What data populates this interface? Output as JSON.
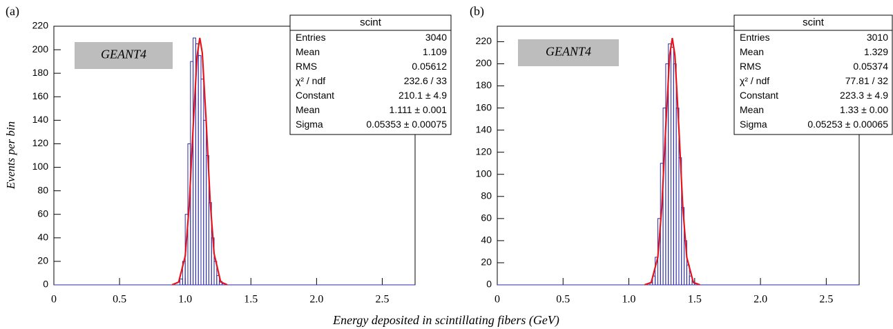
{
  "x_label": "Energy deposited in scintillating fibers (GeV)",
  "chart_data": [
    {
      "type": "histogram",
      "panel_label": "(a)",
      "annotation": "GEANT4",
      "y_label": "Events per bin",
      "color": "#2a2aa8",
      "fit_color": "#e8141b",
      "bins": [
        0.96,
        0.98,
        1.0,
        1.02,
        1.04,
        1.06,
        1.08,
        1.1,
        1.12,
        1.14,
        1.16,
        1.18,
        1.2,
        1.22,
        1.24,
        1.26,
        1.28,
        1.3
      ],
      "values": [
        5,
        20,
        60,
        120,
        190,
        210,
        205,
        195,
        175,
        140,
        110,
        70,
        40,
        20,
        8,
        3,
        1
      ],
      "fit": {
        "x": [
          0.9,
          0.95,
          1.0,
          1.03,
          1.06,
          1.09,
          1.111,
          1.13,
          1.16,
          1.19,
          1.22,
          1.27,
          1.32
        ],
        "values": [
          0.09,
          2.3,
          24.5,
          66.9,
          133.4,
          194.5,
          210.1,
          197.3,
          138.2,
          70.7,
          26.4,
          2.5,
          0.1
        ]
      },
      "xlim": [
        0,
        2.75
      ],
      "ylim": [
        0,
        220
      ],
      "xticks": [
        0,
        0.5,
        {
          "value": 1,
          "label": "1.0"
        },
        1.5,
        {
          "value": 2,
          "label": "2.0"
        },
        2.5
      ],
      "yticks": [
        0,
        20,
        40,
        60,
        80,
        100,
        120,
        140,
        160,
        180,
        200,
        220
      ],
      "stats": {
        "title": "scint",
        "rows": [
          [
            "Entries",
            "3040"
          ],
          [
            "Mean",
            "1.109"
          ],
          [
            "RMS",
            "0.05612"
          ],
          [
            "χ² / ndf",
            "232.6 / 33"
          ],
          [
            "Constant",
            "210.1 ± 4.9"
          ],
          [
            "Mean",
            "1.111 ± 0.001"
          ],
          [
            "Sigma",
            "0.05353 ± 0.00075"
          ]
        ]
      }
    },
    {
      "type": "histogram",
      "panel_label": "(b)",
      "annotation": "GEANT4",
      "color": "#2a2aa8",
      "fit_color": "#e8141b",
      "bins": [
        1.16,
        1.18,
        1.2,
        1.22,
        1.24,
        1.26,
        1.28,
        1.3,
        1.32,
        1.34,
        1.36,
        1.38,
        1.4,
        1.42,
        1.44,
        1.46,
        1.48,
        1.5,
        1.52
      ],
      "values": [
        2,
        8,
        25,
        60,
        110,
        160,
        200,
        218,
        215,
        200,
        160,
        115,
        70,
        40,
        18,
        8,
        3,
        1
      ],
      "fit": {
        "x": [
          1.12,
          1.17,
          1.22,
          1.25,
          1.28,
          1.31,
          1.33,
          1.35,
          1.38,
          1.41,
          1.44,
          1.49,
          1.54
        ],
        "values": [
          0.08,
          2.2,
          24.9,
          70.0,
          142.0,
          207.7,
          223.3,
          207.7,
          142.0,
          70.0,
          24.9,
          2.2,
          0.08
        ]
      },
      "xlim": [
        0,
        2.75
      ],
      "ylim": [
        0,
        234
      ],
      "xticks": [
        0,
        0.5,
        {
          "value": 1,
          "label": "1.0"
        },
        1.5,
        {
          "value": 2,
          "label": "2.0"
        },
        2.5
      ],
      "yticks": [
        0,
        20,
        40,
        60,
        80,
        100,
        120,
        140,
        160,
        180,
        200,
        220
      ],
      "stats": {
        "title": "scint",
        "rows": [
          [
            "Entries",
            "3010"
          ],
          [
            "Mean",
            "1.329"
          ],
          [
            "RMS",
            "0.05374"
          ],
          [
            "χ² / ndf",
            "77.81 / 32"
          ],
          [
            "Constant",
            "223.3 ± 4.9"
          ],
          [
            "Mean",
            "1.33 ± 0.00"
          ],
          [
            "Sigma",
            "0.05253 ± 0.00065"
          ]
        ]
      }
    }
  ]
}
